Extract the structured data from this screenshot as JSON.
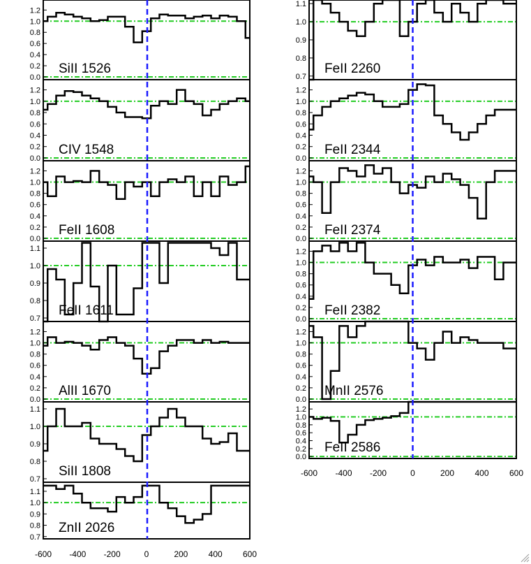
{
  "figure": {
    "colors": {
      "spectrum": "#000000",
      "continuum": "#22cc22",
      "zero_velocity": "#1a1aff"
    },
    "x_axis": {
      "ticks": [
        -600,
        -400,
        -200,
        0,
        200,
        400,
        600
      ],
      "range": [
        -600,
        600
      ]
    }
  },
  "chart_data": [
    {
      "type": "line",
      "label": "SiII 1526",
      "column": "left",
      "yticks": [
        "0.0",
        "0.2",
        "0.4",
        "0.6",
        "0.8",
        "1.0",
        "1.2"
      ],
      "ytick_values": [
        0,
        0.2,
        0.4,
        0.6,
        0.8,
        1.0,
        1.2
      ],
      "ylim": [
        -0.05,
        1.38
      ],
      "v": [
        -600,
        -550,
        -500,
        -450,
        -400,
        -350,
        -300,
        -250,
        -200,
        -150,
        -100,
        -50,
        0,
        50,
        100,
        150,
        200,
        250,
        300,
        350,
        400,
        450,
        500,
        550,
        600
      ],
      "flux": [
        1.0,
        1.08,
        1.15,
        1.12,
        1.08,
        1.05,
        1.0,
        1.02,
        1.08,
        1.08,
        0.9,
        0.62,
        0.82,
        1.05,
        1.12,
        1.1,
        1.1,
        1.05,
        1.08,
        1.1,
        1.05,
        1.1,
        1.08,
        1.0,
        0.7
      ]
    },
    {
      "type": "line",
      "label": "CIV 1548",
      "column": "left",
      "yticks": [
        "0.0",
        "0.2",
        "0.4",
        "0.6",
        "0.8",
        "1.0",
        "1.2"
      ],
      "ytick_values": [
        0,
        0.2,
        0.4,
        0.6,
        0.8,
        1.0,
        1.2
      ],
      "ylim": [
        -0.05,
        1.38
      ],
      "v": [
        -600,
        -550,
        -500,
        -450,
        -400,
        -350,
        -300,
        -250,
        -200,
        -150,
        -100,
        -50,
        0,
        50,
        100,
        150,
        200,
        250,
        300,
        350,
        400,
        450,
        500,
        550,
        600
      ],
      "flux": [
        0.85,
        0.95,
        1.1,
        1.18,
        1.16,
        1.1,
        1.05,
        1.0,
        0.9,
        0.8,
        0.72,
        0.72,
        0.7,
        0.92,
        1.0,
        0.95,
        1.2,
        1.0,
        0.95,
        0.75,
        0.85,
        0.95,
        1.0,
        1.05,
        1.0
      ]
    },
    {
      "type": "line",
      "label": "FeII 1608",
      "column": "left",
      "yticks": [
        "0.0",
        "0.2",
        "0.4",
        "0.6",
        "0.8",
        "1.0",
        "1.2"
      ],
      "ytick_values": [
        0,
        0.2,
        0.4,
        0.6,
        0.8,
        1.0,
        1.2
      ],
      "ylim": [
        -0.05,
        1.38
      ],
      "v": [
        -600,
        -550,
        -500,
        -450,
        -400,
        -350,
        -300,
        -250,
        -200,
        -150,
        -100,
        -50,
        0,
        50,
        100,
        150,
        200,
        250,
        300,
        350,
        400,
        450,
        500,
        550,
        600
      ],
      "flux": [
        1.0,
        0.75,
        1.1,
        1.0,
        1.02,
        1.0,
        1.2,
        1.0,
        0.95,
        0.7,
        1.0,
        0.92,
        1.0,
        0.75,
        1.0,
        1.05,
        1.0,
        1.1,
        0.75,
        1.0,
        0.75,
        1.1,
        0.95,
        1.0,
        1.28
      ]
    },
    {
      "type": "line",
      "label": "FeII 1611",
      "column": "left",
      "yticks": [
        "0.7",
        "0.8",
        "0.9",
        "1.0",
        "1.1"
      ],
      "ytick_values": [
        0.7,
        0.8,
        0.9,
        1.0,
        1.1
      ],
      "ylim": [
        0.68,
        1.14
      ],
      "v": [
        -600,
        -550,
        -500,
        -450,
        -400,
        -350,
        -300,
        -250,
        -200,
        -150,
        -100,
        -50,
        0,
        50,
        100,
        150,
        200,
        250,
        300,
        350,
        400,
        450,
        500,
        550,
        600
      ],
      "flux": [
        0.66,
        0.98,
        0.92,
        0.72,
        0.9,
        1.13,
        0.88,
        0.68,
        1.0,
        0.72,
        0.72,
        0.87,
        1.13,
        1.13,
        0.9,
        1.13,
        1.13,
        1.13,
        1.13,
        1.13,
        1.1,
        1.06,
        1.13,
        0.92,
        0.92
      ]
    },
    {
      "type": "line",
      "label": "AlII 1670",
      "column": "left",
      "yticks": [
        "0.0",
        "0.2",
        "0.4",
        "0.6",
        "0.8",
        "1.0",
        "1.2"
      ],
      "ytick_values": [
        0,
        0.2,
        0.4,
        0.6,
        0.8,
        1.0,
        1.2
      ],
      "ylim": [
        -0.05,
        1.38
      ],
      "v": [
        -600,
        -550,
        -500,
        -450,
        -400,
        -350,
        -300,
        -250,
        -200,
        -150,
        -100,
        -50,
        0,
        50,
        100,
        150,
        200,
        250,
        300,
        350,
        400,
        450,
        500,
        550,
        600
      ],
      "flux": [
        0.95,
        1.1,
        1.0,
        1.02,
        1.0,
        0.95,
        0.88,
        1.05,
        1.1,
        1.0,
        0.95,
        0.72,
        0.45,
        0.55,
        0.85,
        0.95,
        1.05,
        1.05,
        1.0,
        1.05,
        1.0,
        1.02,
        1.0,
        1.0,
        1.0
      ]
    },
    {
      "type": "line",
      "label": "SiII 1808",
      "column": "left",
      "yticks": [
        "0.7",
        "0.8",
        "0.9",
        "1.0",
        "1.1"
      ],
      "ytick_values": [
        0.7,
        0.8,
        0.9,
        1.0,
        1.1
      ],
      "ylim": [
        0.68,
        1.14
      ],
      "v": [
        -600,
        -550,
        -500,
        -450,
        -400,
        -350,
        -300,
        -250,
        -200,
        -150,
        -100,
        -50,
        0,
        50,
        100,
        150,
        200,
        250,
        300,
        350,
        400,
        450,
        500,
        550,
        600
      ],
      "flux": [
        0.86,
        1.0,
        1.1,
        1.0,
        1.0,
        1.02,
        0.93,
        0.9,
        0.9,
        0.87,
        0.83,
        0.8,
        0.95,
        1.0,
        1.05,
        1.1,
        1.05,
        1.0,
        1.0,
        0.93,
        0.9,
        0.91,
        0.96,
        0.86,
        0.86
      ]
    },
    {
      "type": "line",
      "label": "ZnII 2026",
      "column": "left",
      "yticks": [
        "0.7",
        "0.8",
        "0.9",
        "1.0",
        "1.1"
      ],
      "ytick_values": [
        0.7,
        0.8,
        0.9,
        1.0,
        1.1
      ],
      "ylim": [
        0.68,
        1.18
      ],
      "v": [
        -600,
        -550,
        -500,
        -450,
        -400,
        -350,
        -300,
        -250,
        -200,
        -150,
        -100,
        -50,
        0,
        50,
        100,
        150,
        200,
        250,
        300,
        350,
        400,
        450,
        500,
        550,
        600
      ],
      "flux": [
        1.15,
        1.15,
        1.12,
        1.15,
        1.08,
        1.0,
        0.95,
        0.95,
        0.92,
        1.05,
        1.0,
        1.05,
        1.15,
        1.15,
        1.0,
        0.95,
        0.88,
        0.82,
        0.85,
        0.9,
        1.15,
        1.15,
        1.15,
        1.15,
        1.15
      ]
    },
    {
      "type": "line",
      "label": "FeII 2260",
      "column": "right",
      "yticks": [
        "0.7",
        "0.8",
        "0.9",
        "1.0",
        "1.1"
      ],
      "ytick_values": [
        0.7,
        0.8,
        0.9,
        1.0,
        1.1
      ],
      "ylim": [
        0.68,
        1.12
      ],
      "v": [
        -600,
        -550,
        -500,
        -450,
        -400,
        -350,
        -300,
        -250,
        -200,
        -150,
        -100,
        -50,
        0,
        50,
        100,
        150,
        200,
        250,
        300,
        350,
        400,
        450,
        500,
        550,
        600
      ],
      "flux": [
        0.68,
        1.15,
        1.1,
        1.05,
        1.0,
        0.95,
        0.92,
        1.0,
        1.1,
        1.15,
        1.15,
        0.92,
        1.0,
        1.1,
        1.15,
        1.05,
        1.0,
        1.1,
        1.05,
        1.0,
        1.1,
        1.15,
        1.15,
        1.1,
        1.1
      ]
    },
    {
      "type": "line",
      "label": "FeII 2344",
      "column": "right",
      "yticks": [
        "0.0",
        "0.2",
        "0.4",
        "0.6",
        "0.8",
        "1.0",
        "1.2"
      ],
      "ytick_values": [
        0,
        0.2,
        0.4,
        0.6,
        0.8,
        1.0,
        1.2
      ],
      "ylim": [
        -0.05,
        1.38
      ],
      "v": [
        -600,
        -550,
        -500,
        -450,
        -400,
        -350,
        -300,
        -250,
        -200,
        -150,
        -100,
        -50,
        0,
        50,
        100,
        150,
        200,
        250,
        300,
        350,
        400,
        450,
        500,
        550,
        600
      ],
      "flux": [
        0.5,
        0.75,
        0.9,
        1.0,
        1.05,
        1.1,
        1.15,
        1.12,
        1.0,
        0.9,
        0.9,
        0.95,
        1.2,
        1.3,
        1.28,
        0.75,
        0.6,
        0.45,
        0.32,
        0.45,
        0.6,
        0.75,
        0.85,
        0.85,
        0.85
      ]
    },
    {
      "type": "line",
      "label": "FeII 2374",
      "column": "right",
      "yticks": [
        "0.0",
        "0.2",
        "0.4",
        "0.6",
        "0.8",
        "1.0",
        "1.2"
      ],
      "ytick_values": [
        0,
        0.2,
        0.4,
        0.6,
        0.8,
        1.0,
        1.2
      ],
      "ylim": [
        -0.05,
        1.38
      ],
      "v": [
        -600,
        -550,
        -500,
        -450,
        -400,
        -350,
        -300,
        -250,
        -200,
        -150,
        -100,
        -50,
        0,
        50,
        100,
        150,
        200,
        250,
        300,
        350,
        400,
        450,
        500,
        550,
        600
      ],
      "flux": [
        1.1,
        1.0,
        0.45,
        1.0,
        1.25,
        1.2,
        1.1,
        1.3,
        1.15,
        1.25,
        1.0,
        0.8,
        0.95,
        0.9,
        1.1,
        1.0,
        1.15,
        1.05,
        0.95,
        0.72,
        0.35,
        1.0,
        1.2,
        1.2,
        1.2
      ]
    },
    {
      "type": "line",
      "label": "FeII 2382",
      "column": "right",
      "yticks": [
        "0.0",
        "0.2",
        "0.4",
        "0.6",
        "0.8",
        "1.0",
        "1.2"
      ],
      "ytick_values": [
        0,
        0.2,
        0.4,
        0.6,
        0.8,
        1.0,
        1.2
      ],
      "ylim": [
        -0.05,
        1.38
      ],
      "v": [
        -600,
        -550,
        -500,
        -450,
        -400,
        -350,
        -300,
        -250,
        -200,
        -150,
        -100,
        -50,
        0,
        50,
        100,
        150,
        200,
        250,
        300,
        350,
        400,
        450,
        500,
        550,
        600
      ],
      "flux": [
        0.35,
        1.2,
        1.3,
        1.2,
        1.35,
        1.2,
        1.35,
        1.0,
        0.8,
        0.8,
        0.6,
        0.45,
        0.95,
        1.05,
        0.95,
        1.1,
        1.0,
        1.0,
        1.05,
        0.9,
        1.1,
        1.1,
        0.7,
        1.0,
        1.0
      ]
    },
    {
      "type": "line",
      "label": "MnII 2576",
      "column": "right",
      "yticks": [
        "0.0",
        "0.2",
        "0.4",
        "0.6",
        "0.8",
        "1.0",
        "1.2"
      ],
      "ytick_values": [
        0,
        0.2,
        0.4,
        0.6,
        0.8,
        1.0,
        1.2
      ],
      "ylim": [
        -0.05,
        1.38
      ],
      "v": [
        -600,
        -550,
        -500,
        -450,
        -400,
        -350,
        -300,
        -250,
        -200,
        -150,
        -100,
        -50,
        0,
        50,
        100,
        150,
        200,
        250,
        300,
        350,
        400,
        450,
        500,
        550,
        600
      ],
      "flux": [
        1.3,
        1.1,
        0.0,
        0.5,
        1.3,
        1.1,
        1.3,
        1.38,
        1.38,
        1.38,
        1.38,
        1.38,
        1.0,
        0.9,
        0.7,
        1.0,
        1.2,
        1.0,
        1.1,
        1.05,
        1.0,
        1.0,
        1.0,
        0.9,
        0.9
      ]
    },
    {
      "type": "line",
      "label": "FeII 2586",
      "column": "right",
      "yticks": [
        "0.0",
        "0.2",
        "0.4",
        "0.6",
        "0.8",
        "1.0",
        "1.2"
      ],
      "ytick_values": [
        0,
        0.2,
        0.4,
        0.6,
        0.8,
        1.0,
        1.2
      ],
      "ylim": [
        -0.05,
        1.38
      ],
      "v": [
        -600,
        -550,
        -500,
        -450,
        -400,
        -350,
        -300,
        -250,
        -200,
        -150,
        -100,
        -50,
        0,
        50,
        100,
        150,
        200,
        250,
        300,
        350,
        400,
        450,
        500,
        550,
        600
      ],
      "flux": [
        1.0,
        0.95,
        0.98,
        0.9,
        0.35,
        0.55,
        0.8,
        0.92,
        0.95,
        0.98,
        1.02,
        1.1,
        1.38,
        1.38,
        1.38,
        1.38,
        1.38,
        1.38,
        1.38,
        1.38,
        1.38,
        1.38,
        1.38,
        1.38,
        1.38
      ]
    }
  ]
}
